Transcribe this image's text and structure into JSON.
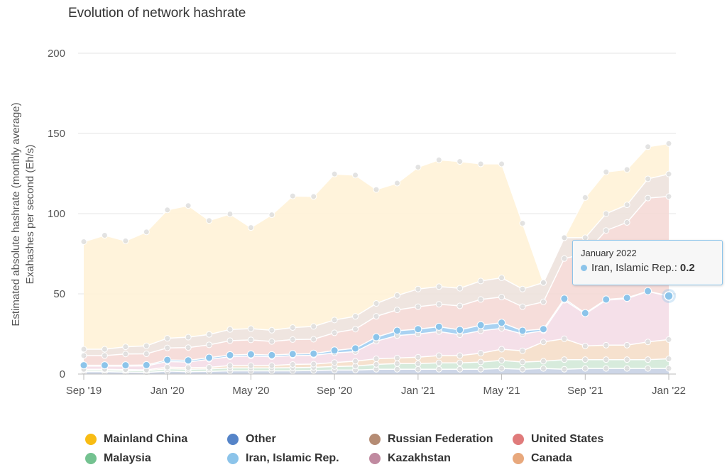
{
  "title": "Evolution of network hashrate",
  "chart_data": {
    "type": "area",
    "stacked": true,
    "title": "Evolution of network hashrate",
    "ylabel_line1": "Estimated absolute hashrate (monthly average)",
    "ylabel_line2": "Exahashes per second (Eh/s)",
    "ylim": [
      0,
      200
    ],
    "yticks": [
      0,
      50,
      100,
      150,
      200
    ],
    "x_tick_labels": [
      "Sep '19",
      "Jan '20",
      "May '20",
      "Sep '20",
      "Jan '21",
      "May '21",
      "Sep '21",
      "Jan '22"
    ],
    "x_tick_index": [
      0,
      4,
      8,
      12,
      16,
      20,
      24,
      28
    ],
    "categories": [
      "Sep 2019",
      "Oct 2019",
      "Nov 2019",
      "Dec 2019",
      "Jan 2020",
      "Feb 2020",
      "Mar 2020",
      "Apr 2020",
      "May 2020",
      "Jun 2020",
      "Jul 2020",
      "Aug 2020",
      "Sep 2020",
      "Oct 2020",
      "Nov 2020",
      "Dec 2020",
      "Jan 2021",
      "Feb 2021",
      "Mar 2021",
      "Apr 2021",
      "May 2021",
      "Jun 2021",
      "Jul 2021",
      "Aug 2021",
      "Sep 2021",
      "Oct 2021",
      "Nov 2021",
      "Dec 2021",
      "Jan 2022"
    ],
    "series_bottom_to_top": [
      {
        "name": "Other",
        "color": "#c4cfe3",
        "values": [
          1.5,
          1.5,
          1.2,
          1.0,
          1.8,
          1.5,
          1.7,
          2.0,
          2.0,
          2.0,
          2.0,
          2.2,
          2.5,
          2.5,
          3.0,
          3.0,
          3.0,
          3.0,
          3.0,
          3.0,
          3.5,
          3.0,
          3.5,
          3.0,
          3.5,
          3.5,
          3.5,
          3.5,
          3.5
        ]
      },
      {
        "name": "Malaysia",
        "color": "#d0e8d6",
        "values": [
          1.0,
          1.0,
          1.0,
          1.0,
          1.5,
          1.5,
          1.5,
          1.8,
          1.8,
          1.8,
          2.0,
          2.0,
          2.2,
          2.5,
          3.0,
          3.5,
          3.5,
          4.0,
          4.0,
          4.5,
          5.0,
          4.5,
          4.5,
          6.0,
          5.5,
          5.5,
          5.5,
          5.5,
          6.0
        ]
      },
      {
        "name": "Canada",
        "color": "#f5dcc6",
        "values": [
          0.5,
          0.5,
          0.6,
          0.6,
          1.0,
          1.0,
          1.0,
          1.5,
          1.5,
          1.5,
          2.0,
          2.0,
          2.5,
          3.0,
          3.5,
          3.5,
          4.0,
          4.5,
          4.5,
          5.5,
          7.0,
          7.0,
          12.0,
          13.0,
          8.5,
          9.0,
          9.0,
          11.0,
          12.0
        ]
      },
      {
        "name": "Kazakhstan",
        "color": "#f3dbe5",
        "values": [
          2.0,
          2.0,
          2.2,
          2.5,
          3.5,
          3.5,
          5.0,
          5.5,
          6.0,
          5.5,
          5.5,
          5.5,
          6.0,
          6.0,
          11.0,
          14.0,
          14.5,
          15.0,
          13.0,
          14.0,
          13.0,
          10.5,
          7.0,
          24.0,
          20.0,
          28.0,
          29.0,
          31.5,
          27.0
        ]
      },
      {
        "name": "Iran, Islamic Rep.",
        "color": "#a9d2f2",
        "values": [
          0.5,
          0.5,
          0.5,
          0.5,
          1.0,
          1.0,
          1.0,
          1.0,
          1.0,
          1.0,
          1.0,
          1.0,
          1.5,
          2.0,
          2.5,
          3.0,
          3.0,
          3.0,
          3.0,
          3.5,
          3.5,
          2.0,
          1.0,
          1.0,
          0.5,
          0.5,
          0.5,
          0.2,
          0.2
        ]
      },
      {
        "name": "United States",
        "color": "#f5d7d3",
        "values": [
          6.0,
          6.0,
          7.0,
          7.0,
          7.5,
          8.0,
          8.0,
          9.0,
          9.0,
          8.5,
          9.0,
          9.0,
          11.0,
          12.0,
          13.0,
          13.0,
          14.0,
          14.0,
          15.0,
          16.0,
          16.0,
          15.0,
          17.0,
          25.0,
          37.0,
          43.0,
          47.0,
          58.0,
          62.0
        ]
      },
      {
        "name": "Russian Federation",
        "color": "#ece1da",
        "values": [
          4.0,
          4.0,
          4.5,
          5.0,
          6.0,
          6.5,
          6.5,
          7.0,
          7.0,
          7.0,
          7.5,
          8.0,
          8.0,
          8.0,
          8.0,
          9.0,
          11.0,
          11.0,
          11.0,
          11.5,
          12.0,
          11.0,
          12.0,
          13.0,
          10.0,
          10.5,
          11.0,
          12.0,
          14.0
        ]
      },
      {
        "name": "Mainland China",
        "color": "#fff1d5",
        "values": [
          67.0,
          71.0,
          66.0,
          71.0,
          80.0,
          82.0,
          71.0,
          72.0,
          63.0,
          72.0,
          82.0,
          81.0,
          91.0,
          88.0,
          71.0,
          70.0,
          76.0,
          79.0,
          79.0,
          73.0,
          71.0,
          41.0,
          0.0,
          0.0,
          25.0,
          26.0,
          22.0,
          20.0,
          19.0
        ]
      }
    ],
    "tooltip": {
      "date": "January 2022",
      "series": "Iran, Islamic Rep.",
      "value": "0.2"
    }
  },
  "legend": [
    {
      "label": "Mainland China",
      "color": "#f8bc14"
    },
    {
      "label": "Other",
      "color": "#5584c8"
    },
    {
      "label": "Russian Federation",
      "color": "#b58c74"
    },
    {
      "label": "United States",
      "color": "#e07b7b"
    },
    {
      "label": "Malaysia",
      "color": "#74c290"
    },
    {
      "label": "Iran, Islamic Rep.",
      "color": "#8cc4ea"
    },
    {
      "label": "Kazakhstan",
      "color": "#c08aa0"
    },
    {
      "label": "Canada",
      "color": "#e8a87c"
    }
  ],
  "tooltip": {
    "date": "January 2022",
    "series": "Iran, Islamic Rep.",
    "label_suffix": ":",
    "value": "0.2",
    "color": "#8cc4ea"
  }
}
